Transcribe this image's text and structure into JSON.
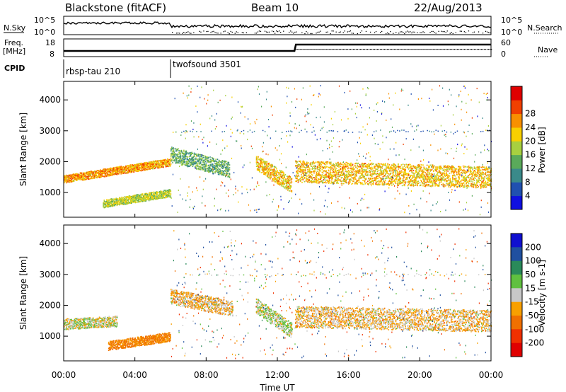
{
  "header": {
    "station": "Blackstone (fitACF)",
    "beam": "Beam 10",
    "date": "22/Aug/2013"
  },
  "panels": {
    "nsky_label": "N.Sky",
    "nsky_ticks": [
      "10^5",
      "10^0"
    ],
    "nsearch_label": "N.Search",
    "freq_label_1": "Freq.",
    "freq_label_2": "[MHz]",
    "freq_ticks": [
      "18",
      "8"
    ],
    "nave_ticks": [
      "60",
      "0"
    ],
    "nave_label": "Nave",
    "cpid_label": "CPID",
    "cpid_modes": [
      "rbsp-tau 210",
      "twofsound 3501"
    ]
  },
  "axes": {
    "xlabel": "Time UT",
    "ylabel": "Slant Range [km]",
    "xticks": [
      "00:00",
      "04:00",
      "08:00",
      "12:00",
      "16:00",
      "20:00",
      "00:00"
    ],
    "yticks": [
      "1000",
      "2000",
      "3000",
      "4000"
    ]
  },
  "colorbars": {
    "power": {
      "label": "Power [dB]",
      "ticks": [
        "4",
        "8",
        "12",
        "16",
        "20",
        "24",
        "28"
      ],
      "colors": [
        "#1010e0",
        "#2050b0",
        "#3a8a8a",
        "#5aaa5a",
        "#a8d040",
        "#f8d000",
        "#f89000",
        "#f04000",
        "#e00000"
      ]
    },
    "velocity": {
      "label": "Velocity [m s-1]",
      "ticks": [
        "200",
        "100",
        "50",
        "15",
        "-15",
        "-50",
        "-100",
        "-200"
      ],
      "colors": [
        "#1010d0",
        "#2050a0",
        "#2a8a5a",
        "#60c040",
        "#c8c8c8",
        "#f8a000",
        "#f07000",
        "#f03000",
        "#e00000"
      ]
    }
  },
  "chart_data": [
    {
      "type": "heatmap",
      "title": "Power",
      "xlabel": "Time UT",
      "ylabel": "Slant Range [km]",
      "xlim": [
        0,
        24
      ],
      "ylim": [
        200,
        4600
      ],
      "colorbar": "Power [dB]",
      "features": [
        {
          "t0": 0.0,
          "t1": 6.0,
          "r_start": 1450,
          "r_end": 2000,
          "width": 250,
          "value": 24
        },
        {
          "t0": 2.2,
          "t1": 6.0,
          "r_start": 650,
          "r_end": 1000,
          "width": 250,
          "value": 18
        },
        {
          "t0": 6.0,
          "t1": 9.3,
          "r_start": 2250,
          "r_end": 1750,
          "width": 500,
          "value": 14
        },
        {
          "t0": 10.8,
          "t1": 12.8,
          "r_start": 2000,
          "r_end": 1250,
          "width": 500,
          "value": 22
        },
        {
          "t0": 13.0,
          "t1": 24.0,
          "r_start": 1700,
          "r_end": 1500,
          "width": 700,
          "value": 22
        }
      ]
    },
    {
      "type": "heatmap",
      "title": "Velocity",
      "xlabel": "Time UT",
      "ylabel": "Slant Range [km]",
      "xlim": [
        0,
        24
      ],
      "ylim": [
        200,
        4600
      ],
      "colorbar": "Velocity [m s-1]",
      "features": [
        {
          "t0": 0.0,
          "t1": 3.0,
          "r_start": 1400,
          "r_end": 1500,
          "width": 350,
          "value": 0
        },
        {
          "t0": 2.5,
          "t1": 6.0,
          "r_start": 700,
          "r_end": 1000,
          "width": 300,
          "value": -60
        },
        {
          "t0": 6.0,
          "t1": 9.5,
          "r_start": 2300,
          "r_end": 1900,
          "width": 500,
          "value": -20
        },
        {
          "t0": 10.8,
          "t1": 12.8,
          "r_start": 2000,
          "r_end": 1200,
          "width": 500,
          "value": 10
        },
        {
          "t0": 13.0,
          "t1": 24.0,
          "r_start": 1650,
          "r_end": 1500,
          "width": 700,
          "value": -20
        }
      ]
    }
  ]
}
